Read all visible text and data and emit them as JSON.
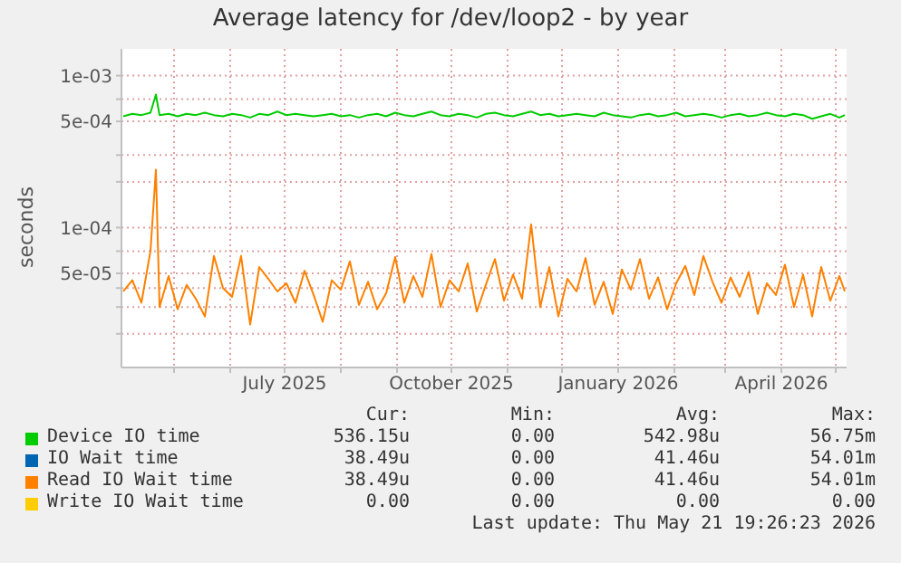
{
  "chart_data": {
    "type": "line",
    "title": "Average latency for /dev/loop2 - by year",
    "ylabel": "seconds",
    "log": true,
    "grid": true,
    "legend": "bottom",
    "marker": "none",
    "line_style": "solid",
    "ylim": [
      1.2e-05,
      0.0015
    ],
    "yticks": [
      {
        "value": 2e-05,
        "label": null
      },
      {
        "value": 3e-05,
        "label": null
      },
      {
        "value": 4e-05,
        "label": null
      },
      {
        "value": 5e-05,
        "label": "5e-05"
      },
      {
        "value": 7e-05,
        "label": null
      },
      {
        "value": 0.0001,
        "label": "1e-04"
      },
      {
        "value": 0.0002,
        "label": null
      },
      {
        "value": 0.0003,
        "label": null
      },
      {
        "value": 0.0005,
        "label": "5e-04"
      },
      {
        "value": 0.0007,
        "label": null
      },
      {
        "value": 0.001,
        "label": "1e-03"
      }
    ],
    "xlim": [
      "2025-04-02",
      "2026-05-07"
    ],
    "xticks": [
      {
        "value": "2025-05-01",
        "label": null
      },
      {
        "value": "2025-06-01",
        "label": null
      },
      {
        "value": "2025-07-01",
        "label": "July 2025"
      },
      {
        "value": "2025-08-01",
        "label": null
      },
      {
        "value": "2025-09-01",
        "label": null
      },
      {
        "value": "2025-10-01",
        "label": "October 2025"
      },
      {
        "value": "2025-11-01",
        "label": null
      },
      {
        "value": "2025-12-01",
        "label": null
      },
      {
        "value": "2026-01-01",
        "label": "January 2026"
      },
      {
        "value": "2026-02-01",
        "label": null
      },
      {
        "value": "2026-03-01",
        "label": null
      },
      {
        "value": "2026-04-01",
        "label": "April 2026"
      },
      {
        "value": "2026-05-01",
        "label": null
      }
    ],
    "x": [
      "2025-04-03",
      "2025-04-08",
      "2025-04-13",
      "2025-04-18",
      "2025-04-21",
      "2025-04-23",
      "2025-04-28",
      "2025-05-03",
      "2025-05-08",
      "2025-05-13",
      "2025-05-18",
      "2025-05-23",
      "2025-05-28",
      "2025-06-02",
      "2025-06-07",
      "2025-06-12",
      "2025-06-17",
      "2025-06-22",
      "2025-06-27",
      "2025-07-02",
      "2025-07-07",
      "2025-07-12",
      "2025-07-17",
      "2025-07-22",
      "2025-07-27",
      "2025-08-01",
      "2025-08-06",
      "2025-08-11",
      "2025-08-16",
      "2025-08-21",
      "2025-08-26",
      "2025-08-31",
      "2025-09-05",
      "2025-09-10",
      "2025-09-15",
      "2025-09-20",
      "2025-09-25",
      "2025-09-30",
      "2025-10-05",
      "2025-10-10",
      "2025-10-15",
      "2025-10-20",
      "2025-10-25",
      "2025-10-30",
      "2025-11-04",
      "2025-11-09",
      "2025-11-14",
      "2025-11-19",
      "2025-11-24",
      "2025-11-29",
      "2025-12-04",
      "2025-12-09",
      "2025-12-14",
      "2025-12-19",
      "2025-12-24",
      "2025-12-29",
      "2026-01-03",
      "2026-01-08",
      "2026-01-13",
      "2026-01-18",
      "2026-01-23",
      "2026-01-28",
      "2026-02-02",
      "2026-02-07",
      "2026-02-12",
      "2026-02-17",
      "2026-02-22",
      "2026-02-27",
      "2026-03-04",
      "2026-03-09",
      "2026-03-14",
      "2026-03-19",
      "2026-03-24",
      "2026-03-29",
      "2026-04-03",
      "2026-04-08",
      "2026-04-13",
      "2026-04-18",
      "2026-04-23",
      "2026-04-28",
      "2026-05-03",
      "2026-05-06"
    ],
    "series": [
      {
        "name": "Device IO time",
        "color": "#00cc00",
        "values": [
          0.00054,
          0.00056,
          0.00055,
          0.00057,
          0.00075,
          0.00055,
          0.00056,
          0.00054,
          0.00056,
          0.00055,
          0.00057,
          0.00055,
          0.00054,
          0.00056,
          0.00055,
          0.00053,
          0.00056,
          0.00055,
          0.00058,
          0.00055,
          0.00056,
          0.00055,
          0.00054,
          0.00055,
          0.00056,
          0.00054,
          0.00055,
          0.00053,
          0.00055,
          0.00056,
          0.00054,
          0.00057,
          0.00055,
          0.00054,
          0.00056,
          0.00058,
          0.00055,
          0.00054,
          0.00056,
          0.00055,
          0.00053,
          0.00056,
          0.00057,
          0.00055,
          0.00054,
          0.00056,
          0.00058,
          0.00055,
          0.00056,
          0.00054,
          0.00055,
          0.00056,
          0.00055,
          0.00054,
          0.00057,
          0.00055,
          0.00054,
          0.00053,
          0.00055,
          0.00056,
          0.00054,
          0.00055,
          0.00057,
          0.00054,
          0.00055,
          0.00056,
          0.00055,
          0.00053,
          0.00055,
          0.00056,
          0.00054,
          0.00055,
          0.00057,
          0.00055,
          0.00054,
          0.00056,
          0.00055,
          0.00052,
          0.00054,
          0.00056,
          0.00053,
          0.00055
        ]
      },
      {
        "name": "IO Wait time",
        "color": "#0066b3",
        "values": [
          null,
          null,
          null,
          null,
          null,
          null,
          null,
          null,
          null,
          null,
          null,
          null,
          null,
          null,
          null,
          null,
          null,
          null,
          null,
          null,
          null,
          null,
          null,
          null,
          null,
          null,
          null,
          null,
          null,
          null,
          null,
          null,
          null,
          null,
          null,
          null,
          null,
          null,
          null,
          null,
          null,
          null,
          null,
          null,
          null,
          null,
          null,
          null,
          null,
          null,
          null,
          null,
          null,
          null,
          null,
          null,
          null,
          null,
          null,
          null,
          null,
          null,
          null,
          null,
          null,
          null,
          null,
          null,
          null,
          null,
          null,
          null,
          null,
          null,
          null,
          null,
          null,
          null,
          null,
          null,
          null,
          null
        ]
      },
      {
        "name": "Read IO Wait time",
        "color": "#ff8000",
        "values": [
          3.8e-05,
          4.5e-05,
          3.2e-05,
          7e-05,
          0.00024,
          3e-05,
          4.8e-05,
          2.9e-05,
          4.2e-05,
          3.4e-05,
          2.6e-05,
          6.5e-05,
          4e-05,
          3.5e-05,
          6.5e-05,
          2.3e-05,
          5.5e-05,
          4.6e-05,
          3.8e-05,
          4.3e-05,
          3.2e-05,
          5.2e-05,
          3.6e-05,
          2.4e-05,
          4.5e-05,
          3.9e-05,
          6e-05,
          3.1e-05,
          4.4e-05,
          2.9e-05,
          3.7e-05,
          6.4e-05,
          3.2e-05,
          4.8e-05,
          3.5e-05,
          6.7e-05,
          3e-05,
          4.5e-05,
          3.8e-05,
          5.8e-05,
          2.8e-05,
          4.2e-05,
          6.2e-05,
          3.3e-05,
          4.9e-05,
          3.4e-05,
          0.000105,
          3e-05,
          5.5e-05,
          2.6e-05,
          4.6e-05,
          3.8e-05,
          6.3e-05,
          3.1e-05,
          4.4e-05,
          2.7e-05,
          5.3e-05,
          3.9e-05,
          6.2e-05,
          3.4e-05,
          4.7e-05,
          2.9e-05,
          4.3e-05,
          5.6e-05,
          3.6e-05,
          6.5e-05,
          4.4e-05,
          3.2e-05,
          4.7e-05,
          3.5e-05,
          5.1e-05,
          2.7e-05,
          4.3e-05,
          3.6e-05,
          5.7e-05,
          3e-05,
          4.9e-05,
          2.6e-05,
          5.5e-05,
          3.3e-05,
          4.8e-05,
          3.8e-05
        ]
      },
      {
        "name": "Write IO Wait time",
        "color": "#ffcc00",
        "values": [
          null,
          null,
          null,
          null,
          null,
          null,
          null,
          null,
          null,
          null,
          null,
          null,
          null,
          null,
          null,
          null,
          null,
          null,
          null,
          null,
          null,
          null,
          null,
          null,
          null,
          null,
          null,
          null,
          null,
          null,
          null,
          null,
          null,
          null,
          null,
          null,
          null,
          null,
          null,
          null,
          null,
          null,
          null,
          null,
          null,
          null,
          null,
          null,
          null,
          null,
          null,
          null,
          null,
          null,
          null,
          null,
          null,
          null,
          null,
          null,
          null,
          null,
          null,
          null,
          null,
          null,
          null,
          null,
          null,
          null,
          null,
          null,
          null,
          null,
          null,
          null,
          null,
          null,
          null,
          null,
          null,
          null
        ]
      }
    ],
    "annotations": [
      "Cur:",
      "Min:",
      "Avg:",
      "Max:",
      "536.15u",
      "0.00",
      "542.98u",
      "56.75m",
      "38.49u",
      "0.00",
      "41.46u",
      "54.01m",
      "38.49u",
      "0.00",
      "41.46u",
      "54.01m",
      "0.00",
      "0.00",
      "0.00",
      "0.00",
      "Last update: Thu May 21 19:26:23 2026"
    ]
  }
}
